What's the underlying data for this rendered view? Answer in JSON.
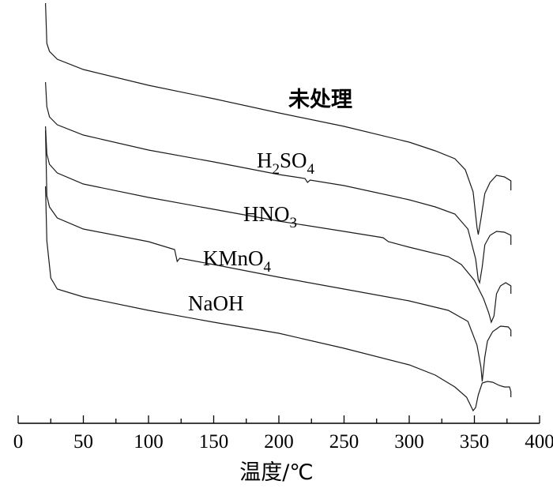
{
  "chart_data": {
    "type": "line",
    "xlabel": "温度/℃",
    "ylabel": "",
    "xlim": [
      0,
      400
    ],
    "x_ticks": [
      0,
      50,
      100,
      150,
      200,
      250,
      300,
      350,
      400
    ],
    "x_tick_labels": [
      "0",
      "50",
      "100",
      "150",
      "200",
      "250",
      "300",
      "350",
      "400"
    ],
    "y_axis_shown": false,
    "grid": false,
    "legend": "none (curves labeled directly)",
    "series": [
      {
        "name": "未处理",
        "label_parts": [
          {
            "t": "未处理"
          }
        ],
        "points": [
          [
            21,
            4
          ],
          [
            22,
            55
          ],
          [
            24,
            65
          ],
          [
            30,
            75
          ],
          [
            50,
            88
          ],
          [
            100,
            108
          ],
          [
            150,
            125
          ],
          [
            200,
            143
          ],
          [
            250,
            160
          ],
          [
            300,
            180
          ],
          [
            320,
            191
          ],
          [
            335,
            201
          ],
          [
            343,
            215
          ],
          [
            349,
            243
          ],
          [
            352,
            288
          ],
          [
            353,
            297
          ],
          [
            355,
            277
          ],
          [
            358,
            245
          ],
          [
            362,
            231
          ],
          [
            367,
            222
          ],
          [
            373,
            224
          ],
          [
            378,
            229
          ],
          [
            378,
            241
          ]
        ]
      },
      {
        "name": "H2SO4",
        "label_parts": [
          {
            "t": "H"
          },
          {
            "t": "2",
            "sub": true
          },
          {
            "t": "SO"
          },
          {
            "t": "4",
            "sub": true
          }
        ],
        "points": [
          [
            21,
            104
          ],
          [
            22,
            135
          ],
          [
            24,
            148
          ],
          [
            30,
            158
          ],
          [
            50,
            171
          ],
          [
            100,
            190
          ],
          [
            150,
            205
          ],
          [
            200,
            221
          ],
          [
            220,
            226
          ],
          [
            222,
            231
          ],
          [
            224,
            228
          ],
          [
            250,
            235
          ],
          [
            300,
            253
          ],
          [
            320,
            262
          ],
          [
            335,
            271
          ],
          [
            345,
            290
          ],
          [
            351,
            328
          ],
          [
            353,
            354
          ],
          [
            354,
            358
          ],
          [
            356,
            338
          ],
          [
            358,
            310
          ],
          [
            362,
            298
          ],
          [
            367,
            293
          ],
          [
            373,
            294
          ],
          [
            378,
            298
          ],
          [
            378,
            310
          ]
        ]
      },
      {
        "name": "HNO3",
        "label_parts": [
          {
            "t": "HNO"
          },
          {
            "t": "3",
            "sub": true
          }
        ],
        "points": [
          [
            21,
            160
          ],
          [
            22,
            195
          ],
          [
            24,
            208
          ],
          [
            30,
            219
          ],
          [
            50,
            233
          ],
          [
            100,
            250
          ],
          [
            150,
            265
          ],
          [
            200,
            280
          ],
          [
            250,
            293
          ],
          [
            280,
            301
          ],
          [
            284,
            306
          ],
          [
            300,
            313
          ],
          [
            330,
            325
          ],
          [
            340,
            335
          ],
          [
            350,
            355
          ],
          [
            357,
            378
          ],
          [
            361,
            396
          ],
          [
            363,
            408
          ],
          [
            365,
            400
          ],
          [
            367,
            372
          ],
          [
            370,
            362
          ],
          [
            374,
            358
          ],
          [
            378,
            362
          ],
          [
            378,
            372
          ]
        ]
      },
      {
        "name": "KMnO4",
        "label_parts": [
          {
            "t": "KMnO"
          },
          {
            "t": "4",
            "sub": true
          }
        ],
        "points": [
          [
            21,
            165
          ],
          [
            22,
            248
          ],
          [
            24,
            262
          ],
          [
            30,
            276
          ],
          [
            50,
            290
          ],
          [
            100,
            306
          ],
          [
            120,
            316
          ],
          [
            122,
            331
          ],
          [
            124,
            327
          ],
          [
            150,
            335
          ],
          [
            200,
            351
          ],
          [
            250,
            366
          ],
          [
            300,
            381
          ],
          [
            330,
            393
          ],
          [
            345,
            407
          ],
          [
            352,
            437
          ],
          [
            355,
            465
          ],
          [
            356,
            483
          ],
          [
            358,
            452
          ],
          [
            360,
            432
          ],
          [
            364,
            420
          ],
          [
            370,
            413
          ],
          [
            376,
            414
          ],
          [
            378,
            418
          ],
          [
            378,
            426
          ]
        ]
      },
      {
        "name": "NaOH",
        "label_parts": [
          {
            "t": "NaOH"
          }
        ],
        "points": [
          [
            21,
            236
          ],
          [
            22,
            305
          ],
          [
            25,
            352
          ],
          [
            30,
            366
          ],
          [
            50,
            376
          ],
          [
            100,
            393
          ],
          [
            150,
            408
          ],
          [
            200,
            422
          ],
          [
            250,
            441
          ],
          [
            300,
            462
          ],
          [
            320,
            475
          ],
          [
            335,
            490
          ],
          [
            344,
            503
          ],
          [
            349,
            520
          ],
          [
            351,
            516
          ],
          [
            353,
            500
          ],
          [
            356,
            485
          ],
          [
            360,
            483
          ],
          [
            364,
            484
          ],
          [
            369,
            488
          ],
          [
            373,
            490
          ],
          [
            377,
            490
          ],
          [
            378,
            496
          ],
          [
            378,
            503
          ]
        ]
      }
    ],
    "labels": [
      {
        "series": "未处理",
        "cjk": true,
        "anchor": [
          365,
          135
        ]
      },
      {
        "series": "H2SO4",
        "cjk": false,
        "anchor": [
          325,
          212
        ]
      },
      {
        "series": "HNO3",
        "cjk": false,
        "anchor": [
          308,
          280
        ]
      },
      {
        "series": "KMnO4",
        "cjk": false,
        "anchor": [
          257,
          336
        ]
      },
      {
        "series": "NaOH",
        "cjk": false,
        "anchor": [
          238,
          393
        ]
      }
    ]
  }
}
